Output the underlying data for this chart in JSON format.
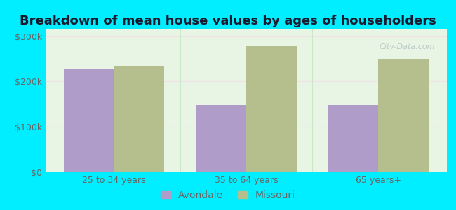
{
  "title": "Breakdown of mean house values by ages of householders",
  "categories": [
    "25 to 34 years",
    "35 to 64 years",
    "65 years+"
  ],
  "avondale_values": [
    228000,
    148000,
    148000
  ],
  "missouri_values": [
    235000,
    278000,
    248000
  ],
  "avondale_color": "#b09cc8",
  "missouri_color": "#b5bf8e",
  "background_outer": "#00eeff",
  "background_inner": "#e8f5e5",
  "yticks": [
    0,
    100000,
    200000,
    300000
  ],
  "ytick_labels": [
    "$0",
    "$100k",
    "$200k",
    "$300k"
  ],
  "ylim": [
    0,
    315000
  ],
  "bar_width": 0.38,
  "legend_labels": [
    "Avondale",
    "Missouri"
  ],
  "title_fontsize": 13,
  "tick_fontsize": 9,
  "legend_fontsize": 10,
  "title_color": "#1a1a2e",
  "tick_color": "#666666"
}
